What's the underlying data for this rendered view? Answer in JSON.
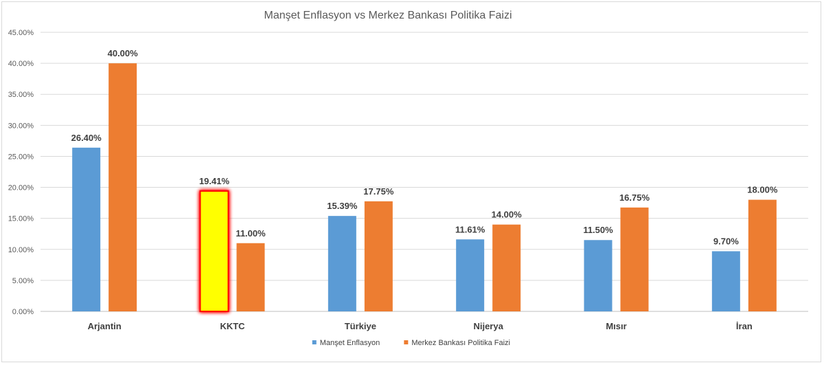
{
  "chart_data": {
    "type": "bar",
    "title": "Manşet Enflasyon vs Merkez Bankası Politika Faizi",
    "categories": [
      "Arjantin",
      "KKTC",
      "Türkiye",
      "Nijerya",
      "Mısır",
      "İran"
    ],
    "series": [
      {
        "name": "Manşet Enflasyon",
        "color": "#5b9bd5",
        "values": [
          26.4,
          19.41,
          15.39,
          11.61,
          11.5,
          9.7
        ],
        "labels": [
          "26.40%",
          "19.41%",
          "15.39%",
          "11.61%",
          "11.50%",
          "9.70%"
        ]
      },
      {
        "name": "Merkez Bankası Politika Faizi",
        "color": "#ed7d31",
        "values": [
          40.0,
          11.0,
          17.75,
          14.0,
          16.75,
          18.0
        ],
        "labels": [
          "40.00%",
          "11.00%",
          "17.75%",
          "14.00%",
          "16.75%",
          "18.00%"
        ]
      }
    ],
    "highlight": {
      "category": "KKTC",
      "series": "Manşet Enflasyon",
      "fill": "#ffff00",
      "glow": "#ff0000"
    },
    "ylim": [
      0,
      45
    ],
    "yticks": [
      "0.00%",
      "5.00%",
      "10.00%",
      "15.00%",
      "20.00%",
      "25.00%",
      "30.00%",
      "35.00%",
      "40.00%",
      "45.00%"
    ],
    "grid": true,
    "legend_position": "bottom",
    "xlabel": "",
    "ylabel": ""
  }
}
